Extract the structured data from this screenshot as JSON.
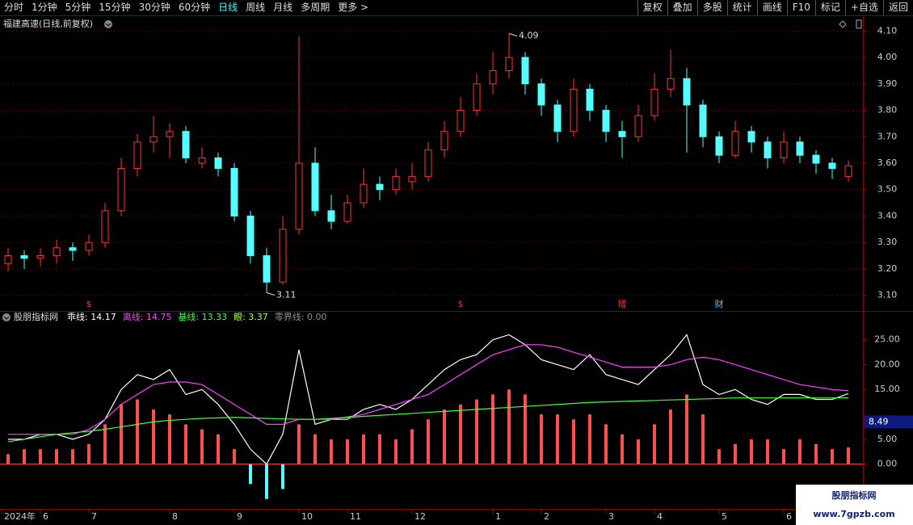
{
  "toolbar": {
    "left": [
      "分时",
      "1分钟",
      "5分钟",
      "15分钟",
      "30分钟",
      "60分钟",
      "日线",
      "周线",
      "月线",
      "多周期",
      "更多 >"
    ],
    "active": "日线",
    "right": [
      "复权",
      "叠加",
      "多股",
      "统计",
      "画线",
      "F10",
      "标记",
      "+自选",
      "返回"
    ]
  },
  "price_chart": {
    "type": "candlestick",
    "title": "福建高速(日线,前复权)",
    "up_color": "#ff3232",
    "down_color": "#54ffff",
    "ylim": [
      3.05,
      4.15
    ],
    "yticks": [
      {
        "value": 3.1,
        "label": "3.10"
      },
      {
        "value": 3.2,
        "label": "3.20"
      },
      {
        "value": 3.3,
        "label": "3.30"
      },
      {
        "value": 3.4,
        "label": "3.40"
      },
      {
        "value": 3.5,
        "label": "3.50"
      },
      {
        "value": 3.6,
        "label": "3.60"
      },
      {
        "value": 3.7,
        "label": "3.70"
      },
      {
        "value": 3.8,
        "label": "3.80"
      },
      {
        "value": 3.9,
        "label": "3.90"
      },
      {
        "value": 4.0,
        "label": "4.00"
      },
      {
        "value": 4.1,
        "label": "4.10"
      }
    ],
    "grid": true,
    "ohlc": [
      [
        3.22,
        3.28,
        3.19,
        3.25
      ],
      [
        3.25,
        3.27,
        3.2,
        3.24
      ],
      [
        3.24,
        3.28,
        3.21,
        3.25
      ],
      [
        3.25,
        3.31,
        3.22,
        3.28
      ],
      [
        3.28,
        3.3,
        3.23,
        3.27
      ],
      [
        3.27,
        3.33,
        3.25,
        3.3
      ],
      [
        3.3,
        3.45,
        3.28,
        3.42
      ],
      [
        3.42,
        3.62,
        3.4,
        3.58
      ],
      [
        3.58,
        3.71,
        3.55,
        3.68
      ],
      [
        3.68,
        3.78,
        3.64,
        3.7
      ],
      [
        3.7,
        3.75,
        3.62,
        3.72
      ],
      [
        3.72,
        3.74,
        3.6,
        3.62
      ],
      [
        3.6,
        3.66,
        3.58,
        3.62
      ],
      [
        3.62,
        3.64,
        3.55,
        3.58
      ],
      [
        3.58,
        3.6,
        3.38,
        3.4
      ],
      [
        3.4,
        3.42,
        3.22,
        3.25
      ],
      [
        3.25,
        3.28,
        3.11,
        3.15
      ],
      [
        3.15,
        3.4,
        3.14,
        3.35
      ],
      [
        3.35,
        4.08,
        3.33,
        3.6
      ],
      [
        3.6,
        3.66,
        3.4,
        3.42
      ],
      [
        3.42,
        3.48,
        3.35,
        3.38
      ],
      [
        3.38,
        3.48,
        3.37,
        3.45
      ],
      [
        3.45,
        3.58,
        3.43,
        3.52
      ],
      [
        3.52,
        3.55,
        3.46,
        3.5
      ],
      [
        3.5,
        3.58,
        3.48,
        3.55
      ],
      [
        3.53,
        3.6,
        3.5,
        3.55
      ],
      [
        3.55,
        3.68,
        3.53,
        3.65
      ],
      [
        3.65,
        3.76,
        3.62,
        3.72
      ],
      [
        3.72,
        3.85,
        3.7,
        3.8
      ],
      [
        3.8,
        3.94,
        3.78,
        3.9
      ],
      [
        3.9,
        4.02,
        3.86,
        3.95
      ],
      [
        3.95,
        4.09,
        3.92,
        4.0
      ],
      [
        4.0,
        4.02,
        3.86,
        3.9
      ],
      [
        3.9,
        3.92,
        3.78,
        3.82
      ],
      [
        3.82,
        3.84,
        3.68,
        3.72
      ],
      [
        3.72,
        3.92,
        3.7,
        3.88
      ],
      [
        3.88,
        3.9,
        3.76,
        3.8
      ],
      [
        3.8,
        3.82,
        3.68,
        3.72
      ],
      [
        3.72,
        3.76,
        3.62,
        3.7
      ],
      [
        3.7,
        3.82,
        3.68,
        3.78
      ],
      [
        3.78,
        3.94,
        3.76,
        3.88
      ],
      [
        3.88,
        4.03,
        3.85,
        3.92
      ],
      [
        3.92,
        3.96,
        3.64,
        3.82
      ],
      [
        3.82,
        3.84,
        3.66,
        3.7
      ],
      [
        3.7,
        3.72,
        3.6,
        3.63
      ],
      [
        3.63,
        3.76,
        3.62,
        3.72
      ],
      [
        3.72,
        3.74,
        3.64,
        3.68
      ],
      [
        3.68,
        3.7,
        3.58,
        3.62
      ],
      [
        3.62,
        3.72,
        3.6,
        3.68
      ],
      [
        3.68,
        3.7,
        3.6,
        3.63
      ],
      [
        3.63,
        3.65,
        3.56,
        3.6
      ],
      [
        3.6,
        3.62,
        3.54,
        3.58
      ],
      [
        3.55,
        3.61,
        3.53,
        3.59
      ]
    ],
    "event_labels": [
      null,
      null,
      null,
      null,
      null,
      "$",
      null,
      null,
      null,
      null,
      null,
      null,
      null,
      null,
      null,
      null,
      null,
      null,
      null,
      null,
      null,
      null,
      null,
      null,
      null,
      null,
      null,
      null,
      "$",
      null,
      null,
      null,
      null,
      null,
      null,
      null,
      null,
      null,
      "增",
      null,
      null,
      null,
      null,
      null,
      "财",
      null,
      null,
      null,
      null,
      null,
      null,
      null,
      null
    ],
    "event_colors": {
      "$": "#ff3232",
      "增": "#ff3232",
      "财": "#54c8ff"
    }
  },
  "indicator": {
    "type": "bar-line",
    "title": "股朋指标网",
    "legend": [
      {
        "text": "乖线: 14.17",
        "color": "#ffffff"
      },
      {
        "text": "离线: 14.75",
        "color": "#ff40ff"
      },
      {
        "text": "基线: 13.33",
        "color": "#40ff40"
      },
      {
        "text": "眼: 3.37",
        "color": "#b0ff40"
      },
      {
        "text": "零界线: 0.00",
        "color": "#909090"
      }
    ],
    "ylim": [
      -8.5,
      29
    ],
    "yticks": [
      {
        "value": 0,
        "label": "0.00"
      },
      {
        "value": 5,
        "label": "5.00"
      },
      {
        "value": 15,
        "label": "15.00"
      },
      {
        "value": 20,
        "label": "20.00"
      },
      {
        "value": 25,
        "label": "25.00"
      }
    ],
    "cursor_value": 8.49,
    "bars": {
      "up_color": "#ff5050",
      "down_color": "#54ffff",
      "values": [
        2,
        3,
        3,
        3,
        3,
        4,
        8,
        12,
        13,
        11,
        10,
        8,
        7,
        6,
        3,
        -4,
        -7,
        -5,
        8,
        6,
        5,
        5,
        6,
        6,
        5,
        7,
        9,
        11,
        12,
        13,
        14,
        15,
        14,
        10,
        10,
        9,
        10,
        8,
        6,
        5,
        8,
        11,
        14,
        10,
        3,
        4,
        5,
        5,
        3,
        5,
        4,
        3,
        3.37
      ]
    },
    "series": [
      {
        "color": "#ffffff",
        "values": [
          5,
          5,
          6,
          6,
          5,
          6,
          9,
          15,
          18,
          17,
          19,
          14,
          15,
          12,
          8,
          3,
          0,
          6,
          23,
          8,
          9,
          9,
          11,
          12,
          11,
          13,
          16,
          19,
          21,
          22,
          25,
          26,
          24,
          21,
          20,
          19,
          22,
          18,
          17,
          16,
          19,
          22,
          26,
          16,
          14,
          15,
          13,
          12,
          14,
          14,
          13,
          13,
          14.17
        ]
      },
      {
        "color": "#ff40ff",
        "values": [
          6,
          6,
          6,
          6,
          6,
          7,
          9,
          12,
          14,
          16,
          16.5,
          16.5,
          16,
          14,
          12,
          10,
          8,
          8,
          9,
          9,
          9,
          9.5,
          10,
          11,
          12,
          13,
          14,
          16,
          18,
          20,
          22,
          23,
          24,
          24,
          23.5,
          22.5,
          21.5,
          20.5,
          19.5,
          19.5,
          19.5,
          20,
          21,
          21.5,
          21,
          20,
          19,
          18,
          17,
          16,
          15.5,
          15,
          14.75
        ]
      },
      {
        "color": "#40ff40",
        "values": [
          4.5,
          5,
          5.5,
          6,
          6.3,
          6.6,
          7,
          7.5,
          8,
          8.5,
          8.8,
          9,
          9.2,
          9.3,
          9.4,
          9.3,
          9.2,
          9.1,
          9,
          9,
          9.2,
          9.4,
          9.6,
          9.8,
          10,
          10.2,
          10.4,
          10.6,
          10.8,
          11,
          11.2,
          11.4,
          11.6,
          11.8,
          12,
          12.2,
          12.4,
          12.5,
          12.6,
          12.7,
          12.8,
          12.9,
          13,
          13.1,
          13.2,
          13.3,
          13.3,
          13.3,
          13.3,
          13.3,
          13.3,
          13.3,
          13.33
        ]
      }
    ]
  },
  "x_axis": {
    "categories": [
      "2024年",
      null,
      "6",
      null,
      null,
      "7",
      null,
      null,
      null,
      null,
      "8",
      null,
      null,
      null,
      "9",
      null,
      null,
      null,
      "10",
      null,
      null,
      "11",
      null,
      null,
      null,
      "12",
      null,
      null,
      null,
      null,
      "1",
      null,
      null,
      "2",
      null,
      null,
      null,
      "3",
      null,
      null,
      "4",
      null,
      null,
      null,
      "5",
      null,
      null,
      null,
      "6",
      null,
      null,
      null,
      null
    ]
  },
  "watermark": {
    "title": "股朋指标网",
    "url": "www.7gpzb.com"
  }
}
